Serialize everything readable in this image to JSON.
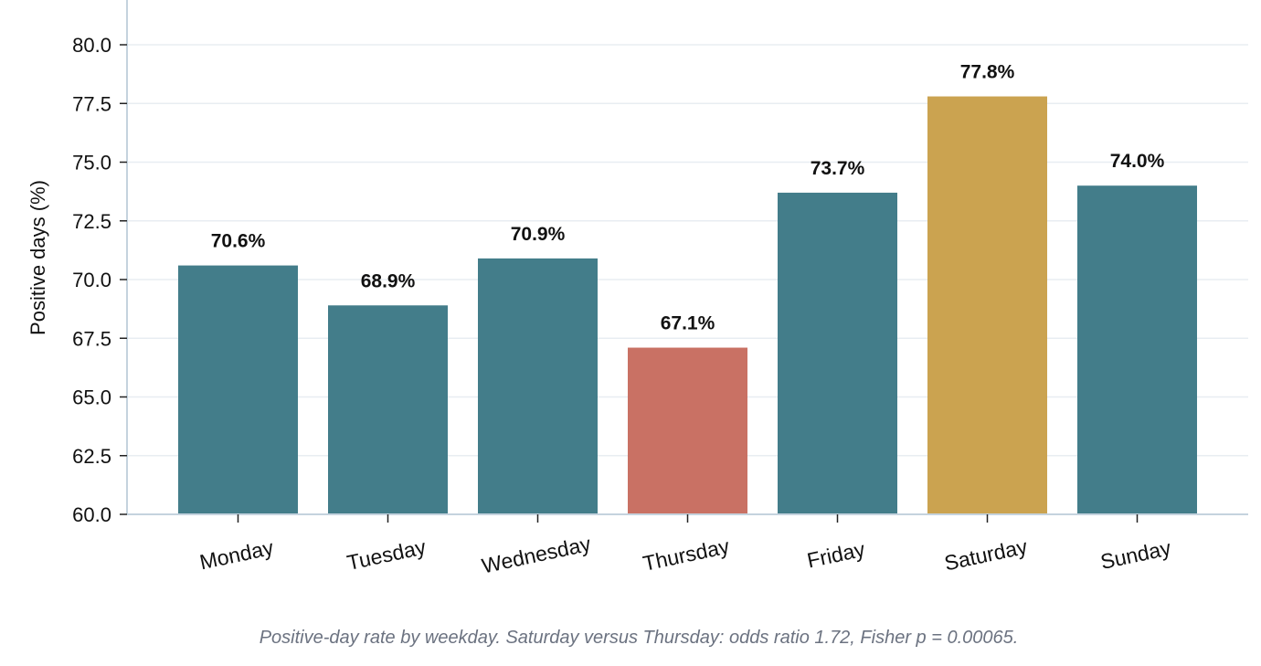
{
  "chart_data": {
    "type": "bar",
    "categories": [
      "Monday",
      "Tuesday",
      "Wednesday",
      "Thursday",
      "Friday",
      "Saturday",
      "Sunday"
    ],
    "values": [
      70.6,
      68.9,
      70.9,
      67.1,
      73.7,
      77.8,
      74.0
    ],
    "data_labels": [
      "70.6%",
      "68.9%",
      "70.9%",
      "67.1%",
      "73.7%",
      "77.8%",
      "74.0%"
    ],
    "bar_colors": [
      "#437d8a",
      "#437d8a",
      "#437d8a",
      "#c97164",
      "#437d8a",
      "#cba350",
      "#437d8a"
    ],
    "ylabel": "Positive days (%)",
    "xlabel": "",
    "ylim": [
      60.0,
      80.0
    ],
    "yticks": [
      60.0,
      62.5,
      65.0,
      67.5,
      70.0,
      72.5,
      75.0,
      77.5,
      80.0
    ],
    "ytick_labels": [
      "60.0",
      "62.5",
      "65.0",
      "67.5",
      "70.0",
      "72.5",
      "75.0",
      "77.5",
      "80.0"
    ],
    "grid": "horizontal",
    "legend": "none",
    "caption": "Positive-day rate by weekday. Saturday versus Thursday: odds ratio 1.72, Fisher p = 0.00065."
  },
  "colors": {
    "default_bar": "#437d8a",
    "lowest_bar": "#c97164",
    "highest_bar": "#cba350",
    "grid": "#e8edf2",
    "axis": "#c5d3de",
    "caption": "#6b7280"
  }
}
